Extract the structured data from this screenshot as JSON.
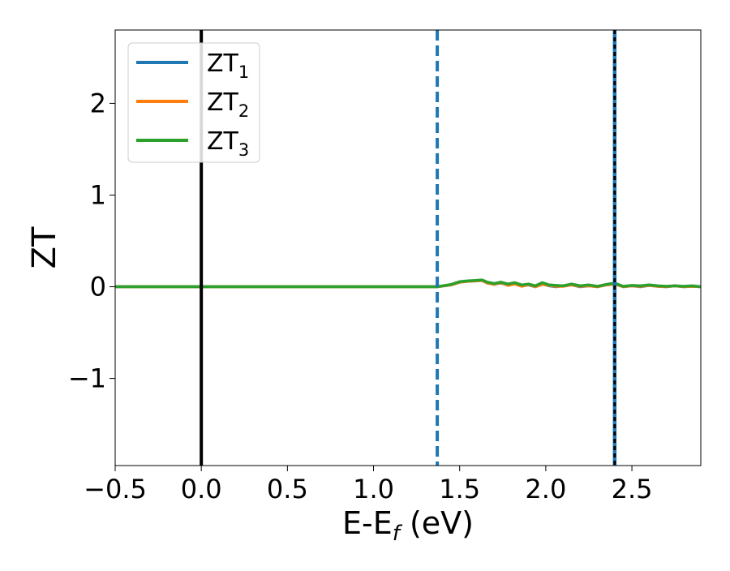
{
  "chart_data": {
    "type": "line",
    "xlabel": "E-E",
    "xlabel_sub": "f",
    "xlabel_unit": " (eV)",
    "ylabel": "ZT",
    "xlim": [
      -0.5,
      2.9
    ],
    "ylim": [
      -1.95,
      2.8
    ],
    "xticks": [
      -0.5,
      0.0,
      0.5,
      1.0,
      1.5,
      2.0,
      2.5
    ],
    "xtick_labels": [
      "−0.5",
      "0.0",
      "0.5",
      "1.0",
      "1.5",
      "2.0",
      "2.5"
    ],
    "yticks": [
      -1,
      0,
      1,
      2
    ],
    "ytick_labels": [
      "−1",
      "0",
      "1",
      "2"
    ],
    "grid": false,
    "legend_position": "upper-left",
    "vertical_lines": [
      {
        "x": 0.0,
        "style": "solid",
        "color": "#000000"
      },
      {
        "x": 1.37,
        "style": "dashed",
        "color": "#1f77b4"
      },
      {
        "x": 2.4,
        "style": "solid",
        "color": "#1f77b4"
      },
      {
        "x": 2.4,
        "style": "dotted",
        "color": "#000000"
      }
    ],
    "series": [
      {
        "name": "ZT",
        "sub": "1",
        "color": "#1f77b4",
        "x": [
          -0.5,
          0.0,
          0.5,
          1.0,
          1.37,
          1.45,
          1.5,
          1.55,
          1.6,
          1.63,
          1.66,
          1.7,
          1.74,
          1.78,
          1.82,
          1.86,
          1.9,
          1.94,
          1.98,
          2.02,
          2.06,
          2.1,
          2.15,
          2.2,
          2.25,
          2.3,
          2.35,
          2.4,
          2.45,
          2.5,
          2.55,
          2.6,
          2.65,
          2.7,
          2.75,
          2.8,
          2.85,
          2.9
        ],
        "y": [
          0,
          0,
          0,
          0,
          0,
          0.02,
          0.05,
          0.06,
          0.065,
          0.07,
          0.045,
          0.03,
          0.04,
          0.02,
          0.035,
          0.01,
          0.02,
          0.0,
          0.03,
          0.01,
          0.0,
          0.01,
          0.02,
          0.0,
          0.01,
          0.0,
          0.02,
          0.03,
          0.0,
          0.01,
          0.0,
          0.015,
          0.005,
          0.0,
          0.01,
          0.0,
          0.005,
          0.0
        ]
      },
      {
        "name": "ZT",
        "sub": "2",
        "color": "#ff7f0e",
        "x": [
          -0.5,
          0.0,
          0.5,
          1.0,
          1.37,
          1.45,
          1.5,
          1.55,
          1.6,
          1.63,
          1.66,
          1.7,
          1.74,
          1.78,
          1.82,
          1.86,
          1.9,
          1.94,
          1.98,
          2.02,
          2.06,
          2.1,
          2.15,
          2.2,
          2.25,
          2.3,
          2.35,
          2.4,
          2.45,
          2.5,
          2.55,
          2.6,
          2.65,
          2.7,
          2.75,
          2.8,
          2.85,
          2.9
        ],
        "y": [
          0,
          0,
          0,
          0,
          0,
          0.02,
          0.05,
          0.06,
          0.065,
          0.068,
          0.04,
          0.025,
          0.045,
          0.015,
          0.03,
          0.005,
          0.025,
          0.0,
          0.025,
          0.015,
          0.005,
          0.005,
          0.02,
          0.005,
          0.01,
          0.0,
          0.02,
          0.03,
          0.0,
          0.01,
          0.005,
          0.015,
          0.005,
          0.0,
          0.01,
          0.0,
          0.005,
          0.0
        ]
      },
      {
        "name": "ZT",
        "sub": "3",
        "color": "#2ca02c",
        "x": [
          -0.5,
          0.0,
          0.5,
          1.0,
          1.37,
          1.45,
          1.5,
          1.55,
          1.6,
          1.63,
          1.66,
          1.7,
          1.74,
          1.78,
          1.82,
          1.86,
          1.9,
          1.94,
          1.98,
          2.02,
          2.06,
          2.1,
          2.15,
          2.2,
          2.25,
          2.3,
          2.35,
          2.4,
          2.45,
          2.5,
          2.55,
          2.6,
          2.65,
          2.7,
          2.75,
          2.8,
          2.85,
          2.9
        ],
        "y": [
          0,
          0,
          0,
          0,
          0,
          0.025,
          0.055,
          0.065,
          0.07,
          0.075,
          0.05,
          0.035,
          0.05,
          0.03,
          0.045,
          0.02,
          0.03,
          0.01,
          0.045,
          0.02,
          0.015,
          0.01,
          0.03,
          0.01,
          0.02,
          0.005,
          0.025,
          0.04,
          0.005,
          0.015,
          0.01,
          0.02,
          0.01,
          0.005,
          0.01,
          0.005,
          0.01,
          0.0
        ]
      }
    ]
  }
}
